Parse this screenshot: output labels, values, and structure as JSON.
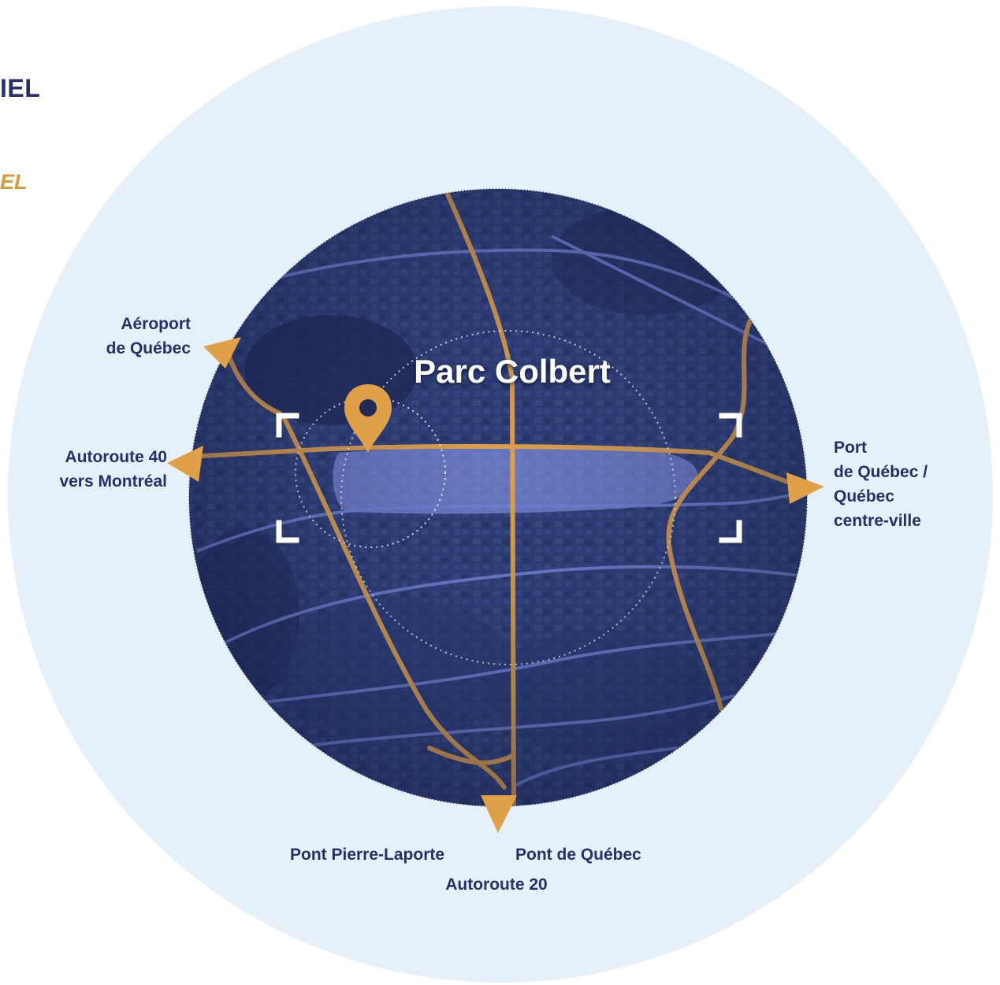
{
  "page": {
    "heading_partial": "IEL",
    "subheading_partial": "EL"
  },
  "map": {
    "park_name": "Parc Colbert",
    "colors": {
      "background_circle": "#e6f0f9",
      "map_base": "#2b3a70",
      "road_primary": "#e0a047",
      "road_secondary": "#6f7fd0",
      "highlight_zone": "#9aa8ff",
      "label_text": "#26306a"
    },
    "icons": [
      "map-pin-icon",
      "focus-bracket-icon",
      "direction-arrow-icon"
    ]
  },
  "destinations": {
    "airport": {
      "line1": "Aéroport",
      "line2": "de Québec"
    },
    "autoroute40": {
      "line1": "Autoroute 40",
      "line2": "vers Montréal"
    },
    "port": {
      "line1": "Port",
      "line2": "de Québec /",
      "line3": "Québec",
      "line4": "centre-ville"
    },
    "bridge_pierre_laporte": "Pont Pierre-Laporte",
    "bridge_quebec": "Pont de Québec",
    "autoroute20": "Autoroute 20"
  }
}
